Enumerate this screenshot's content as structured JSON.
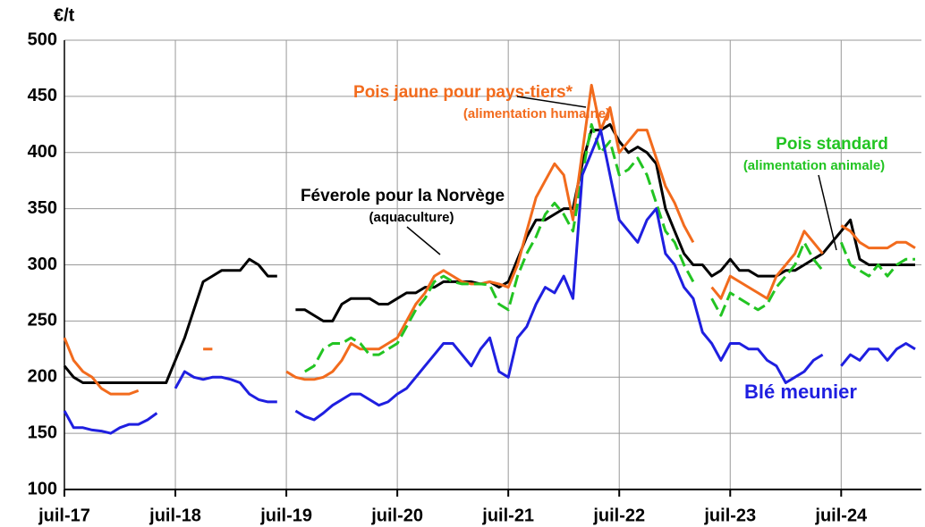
{
  "chart_data": {
    "type": "line",
    "ylabel": "€/t",
    "xlim": [
      "2017-07",
      "2025-03"
    ],
    "xticks": [
      {
        "value": "2017-07",
        "label": "juil-17"
      },
      {
        "value": "2018-07",
        "label": "juil-18"
      },
      {
        "value": "2019-07",
        "label": "juil-19"
      },
      {
        "value": "2020-07",
        "label": "juil-20"
      },
      {
        "value": "2021-07",
        "label": "juil-21"
      },
      {
        "value": "2022-07",
        "label": "juil-22"
      },
      {
        "value": "2023-07",
        "label": "juil-23"
      },
      {
        "value": "2024-07",
        "label": "juil-24"
      }
    ],
    "ylim": [
      100,
      500
    ],
    "yticks": [
      100,
      150,
      200,
      250,
      300,
      350,
      400,
      450,
      500
    ],
    "grid": true,
    "x": [
      "2017-07",
      "2017-08",
      "2017-09",
      "2017-10",
      "2017-11",
      "2017-12",
      "2018-01",
      "2018-02",
      "2018-03",
      "2018-04",
      "2018-05",
      "2018-06",
      "2018-07",
      "2018-08",
      "2018-09",
      "2018-10",
      "2018-11",
      "2018-12",
      "2019-01",
      "2019-02",
      "2019-03",
      "2019-04",
      "2019-05",
      "2019-06",
      "2019-07",
      "2019-08",
      "2019-09",
      "2019-10",
      "2019-11",
      "2019-12",
      "2020-01",
      "2020-02",
      "2020-03",
      "2020-04",
      "2020-05",
      "2020-06",
      "2020-07",
      "2020-08",
      "2020-09",
      "2020-10",
      "2020-11",
      "2020-12",
      "2021-01",
      "2021-02",
      "2021-03",
      "2021-04",
      "2021-05",
      "2021-06",
      "2021-07",
      "2021-08",
      "2021-09",
      "2021-10",
      "2021-11",
      "2021-12",
      "2022-01",
      "2022-02",
      "2022-03",
      "2022-04",
      "2022-05",
      "2022-06",
      "2022-07",
      "2022-08",
      "2022-09",
      "2022-10",
      "2022-11",
      "2022-12",
      "2023-01",
      "2023-02",
      "2023-03",
      "2023-04",
      "2023-05",
      "2023-06",
      "2023-07",
      "2023-08",
      "2023-09",
      "2023-10",
      "2023-11",
      "2023-12",
      "2024-01",
      "2024-02",
      "2024-03",
      "2024-04",
      "2024-05",
      "2024-06",
      "2024-07",
      "2024-08",
      "2024-09",
      "2024-10",
      "2024-11",
      "2024-12",
      "2025-01",
      "2025-02",
      "2025-03"
    ],
    "series": [
      {
        "name": "Blé meunier",
        "color": "#1f1fe0",
        "dashed": false,
        "values": [
          170,
          155,
          155,
          153,
          152,
          150,
          155,
          158,
          158,
          162,
          168,
          null,
          190,
          205,
          200,
          198,
          200,
          200,
          198,
          195,
          185,
          180,
          178,
          178,
          null,
          170,
          165,
          162,
          168,
          175,
          180,
          185,
          185,
          180,
          175,
          178,
          185,
          190,
          200,
          210,
          220,
          230,
          230,
          220,
          210,
          225,
          235,
          205,
          200,
          235,
          245,
          265,
          280,
          275,
          290,
          270,
          380,
          400,
          420,
          380,
          340,
          330,
          320,
          340,
          350,
          310,
          300,
          280,
          270,
          240,
          230,
          215,
          230,
          230,
          225,
          225,
          215,
          210,
          195,
          200,
          205,
          215,
          220,
          null,
          210,
          220,
          215,
          225,
          225,
          215,
          225,
          230,
          225
        ]
      },
      {
        "name": "Pois jaune pour pays-tiers*",
        "color": "#f26b1d",
        "dashed": false,
        "values": [
          235,
          215,
          205,
          200,
          190,
          185,
          185,
          185,
          188,
          null,
          null,
          null,
          null,
          null,
          null,
          225,
          225,
          null,
          null,
          null,
          null,
          null,
          null,
          null,
          205,
          200,
          198,
          198,
          200,
          205,
          215,
          230,
          225,
          225,
          225,
          230,
          235,
          250,
          265,
          275,
          290,
          295,
          290,
          285,
          283,
          283,
          285,
          283,
          280,
          300,
          330,
          360,
          375,
          390,
          380,
          340,
          400,
          460,
          420,
          440,
          400,
          410,
          420,
          420,
          395,
          370,
          355,
          335,
          320,
          null,
          280,
          270,
          290,
          285,
          280,
          275,
          270,
          290,
          300,
          310,
          330,
          320,
          310,
          null,
          335,
          330,
          320,
          315,
          315,
          315,
          320,
          320,
          315
        ]
      },
      {
        "name": "Pois standard",
        "color": "#22c422",
        "dashed": true,
        "values": [
          null,
          null,
          null,
          null,
          null,
          null,
          null,
          null,
          null,
          null,
          null,
          null,
          null,
          null,
          null,
          null,
          null,
          null,
          null,
          null,
          null,
          null,
          null,
          null,
          null,
          null,
          205,
          210,
          225,
          230,
          230,
          235,
          230,
          220,
          220,
          225,
          230,
          245,
          260,
          270,
          285,
          290,
          285,
          283,
          283,
          283,
          282,
          265,
          260,
          290,
          310,
          325,
          345,
          355,
          345,
          330,
          380,
          425,
          400,
          410,
          380,
          385,
          395,
          380,
          355,
          330,
          320,
          300,
          285,
          null,
          270,
          255,
          275,
          270,
          265,
          260,
          265,
          280,
          290,
          300,
          320,
          305,
          295,
          null,
          320,
          300,
          295,
          290,
          300,
          290,
          300,
          305,
          305
        ]
      },
      {
        "name": "Féverole pour la Norvège",
        "color": "#000000",
        "dashed": false,
        "values": [
          210,
          200,
          195,
          195,
          195,
          195,
          195,
          195,
          195,
          195,
          195,
          195,
          215,
          235,
          260,
          285,
          290,
          295,
          295,
          295,
          305,
          300,
          290,
          290,
          null,
          260,
          260,
          255,
          250,
          250,
          265,
          270,
          270,
          270,
          265,
          265,
          270,
          275,
          275,
          280,
          280,
          285,
          285,
          285,
          285,
          283,
          285,
          280,
          285,
          305,
          325,
          340,
          340,
          345,
          350,
          350,
          390,
          420,
          420,
          425,
          410,
          400,
          405,
          400,
          390,
          350,
          330,
          310,
          300,
          300,
          290,
          295,
          305,
          295,
          295,
          290,
          290,
          290,
          295,
          295,
          300,
          305,
          310,
          320,
          330,
          340,
          305,
          300,
          300,
          300,
          300,
          300,
          300
        ]
      }
    ],
    "annotations": [
      "(alimentation humaine)",
      "(alimentation animale)",
      "(aquaculture)"
    ]
  }
}
